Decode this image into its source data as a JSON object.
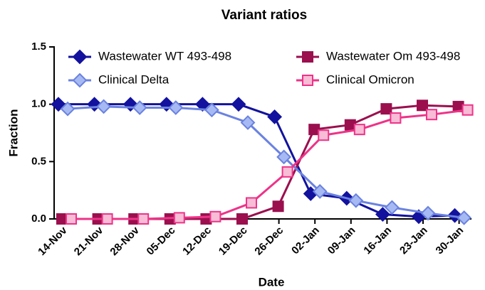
{
  "chart_data": {
    "type": "line",
    "title": "Variant ratios",
    "x_label": "Date",
    "y_label": "Fraction",
    "categories": [
      "14-Nov",
      "21-Nov",
      "28-Nov",
      "05-Dec",
      "12-Dec",
      "19-Dec",
      "26-Dec",
      "02-Jan",
      "09-Jan",
      "16-Jan",
      "23-Jan",
      "30-Jan"
    ],
    "series": [
      {
        "name": "Wastewater WT 493-498",
        "color": "#12129e",
        "marker": "diamond",
        "values": [
          1.0,
          1.0,
          1.0,
          1.0,
          1.0,
          1.0,
          0.89,
          0.22,
          0.18,
          0.04,
          0.02,
          0.03
        ]
      },
      {
        "name": "Wastewater Om 493-498",
        "color": "#9b0f4e",
        "marker": "square",
        "values": [
          0,
          0,
          0,
          0,
          0,
          0,
          0.11,
          0.78,
          0.82,
          0.96,
          0.99,
          0.98
        ]
      },
      {
        "name": "Clinical Delta",
        "color": "#6a82e0",
        "marker": "diamond-open",
        "values": [
          0.96,
          0.98,
          0.97,
          0.97,
          0.95,
          0.84,
          0.54,
          0.24,
          0.16,
          0.1,
          0.05,
          0.01
        ]
      },
      {
        "name": "Clinical Omicron",
        "color": "#ee3388",
        "marker": "square-open",
        "values": [
          0,
          0,
          0,
          0.01,
          0.02,
          0.14,
          0.41,
          0.73,
          0.78,
          0.88,
          0.91,
          0.95
        ]
      }
    ],
    "ylim": [
      0,
      1.5
    ],
    "yticks": [
      {
        "value": 0,
        "label": "0.0"
      },
      {
        "value": 0.5,
        "label": "0.5"
      },
      {
        "value": 1,
        "label": "1.0"
      },
      {
        "value": 1.5,
        "label": "1.5"
      }
    ],
    "legend": "top"
  }
}
